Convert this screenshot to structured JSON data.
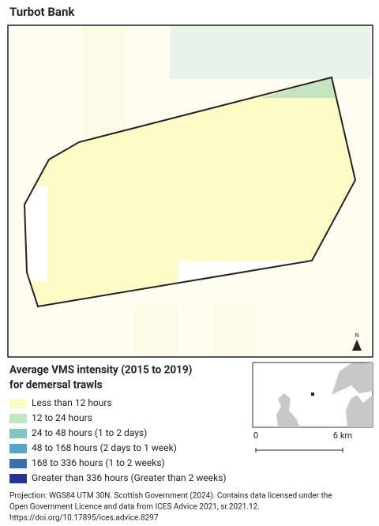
{
  "title": "Turbot Bank",
  "legend": {
    "title_lines": [
      "Average VMS intensity (2015 to 2019)",
      "for demersal trawls"
    ],
    "items": [
      {
        "label": "Less than 12 hours",
        "color": "#fdfcc6"
      },
      {
        "label": "12 to 24 hours",
        "color": "#c5e5c0"
      },
      {
        "label": "24 to 48 hours (1 to 2 days)",
        "color": "#7fc7bd"
      },
      {
        "label": "48 to 168 hours (2 days to 1 week)",
        "color": "#59a6cb"
      },
      {
        "label": "168 to 336 hours (1 to 2 weeks)",
        "color": "#3a6fb0"
      },
      {
        "label": "Greater than 336 hours (Greater than 2 weeks)",
        "color": "#27348b"
      }
    ]
  },
  "north_label": "N",
  "scale_bar": {
    "start": "0",
    "end": "6 km"
  },
  "footer": [
    "Projection: WGS84 UTM 30N. Scottish Government (2024). Contains data licensed under the",
    "Open Government Licence and data from ICES Advice 2021, sr.2021.12.",
    "https://doi.org/10.17895/ices.advice.8297"
  ]
}
